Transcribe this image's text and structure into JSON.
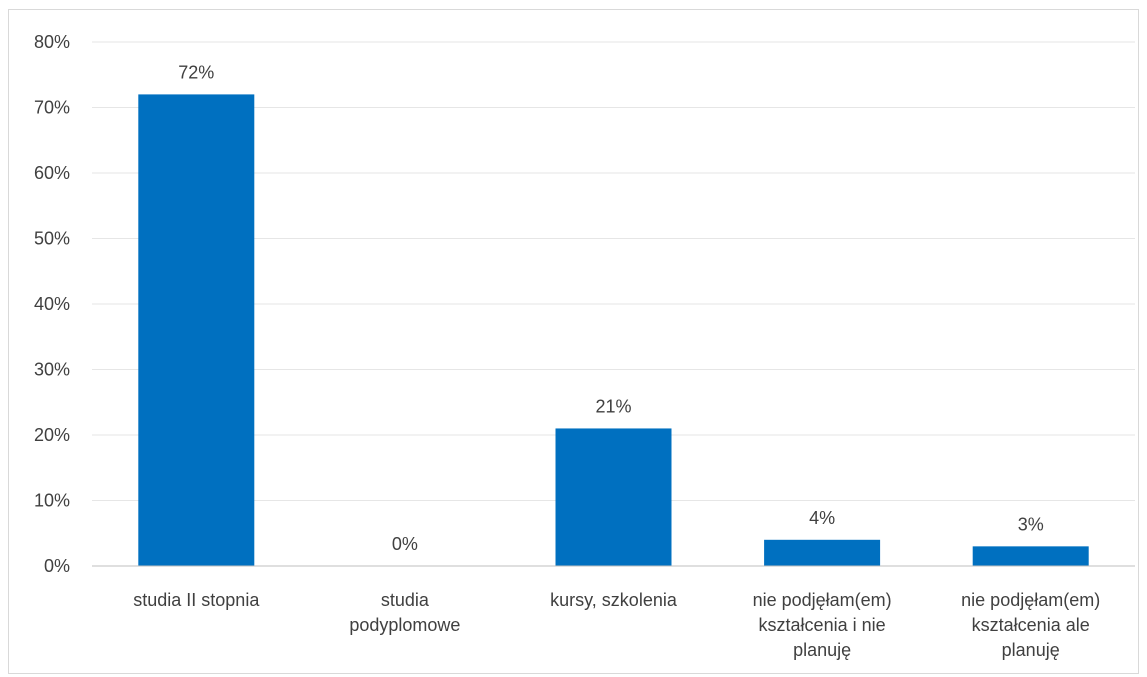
{
  "chart_data": {
    "type": "bar",
    "title": "",
    "xlabel": "",
    "ylabel": "",
    "categories": [
      [
        "studia II stopnia"
      ],
      [
        "studia",
        "podyplomowe"
      ],
      [
        "kursy, szkolenia"
      ],
      [
        "nie podjęłam(em)",
        "kształcenia i nie",
        "planuję"
      ],
      [
        "nie podjęłam(em)",
        "kształcenia ale",
        "planuję"
      ]
    ],
    "values": [
      72,
      0,
      21,
      4,
      3
    ],
    "data_labels": [
      "72%",
      "0%",
      "21%",
      "4%",
      "3%"
    ],
    "ylim": [
      0,
      80
    ],
    "y_ticks": [
      0,
      10,
      20,
      30,
      40,
      50,
      60,
      70,
      80
    ],
    "y_tick_labels": [
      "0%",
      "10%",
      "20%",
      "30%",
      "40%",
      "50%",
      "60%",
      "70%",
      "80%"
    ],
    "grid": true,
    "legend": "none",
    "colors": {
      "bar": "#0070C0",
      "grid": "#e6e6e6",
      "axis": "#bfbfbf",
      "text": "#404040"
    }
  }
}
